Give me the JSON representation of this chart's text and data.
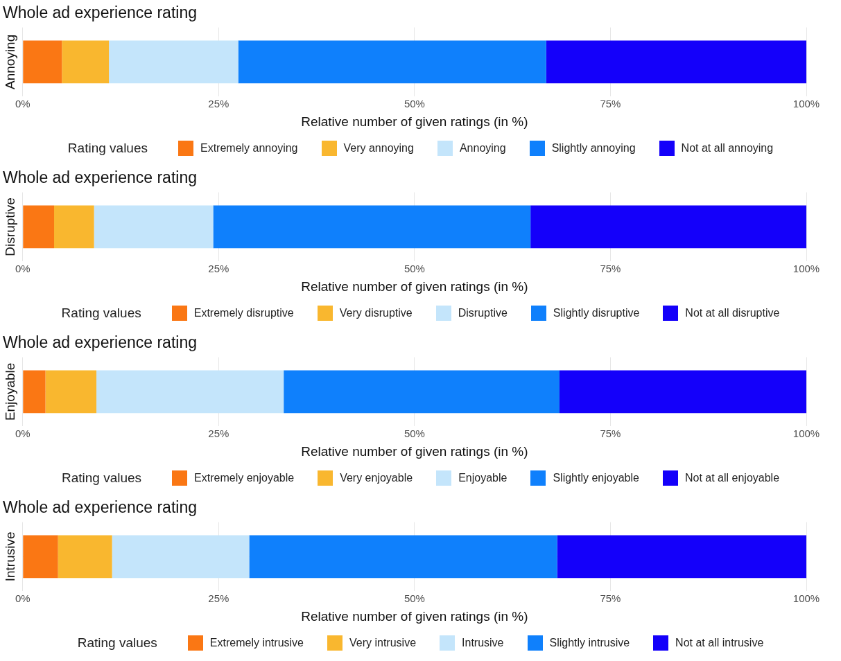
{
  "chart_data": [
    {
      "type": "bar",
      "title": "Whole ad experience rating",
      "ylabel": "Annoying",
      "xlabel": "Relative number of given ratings (in %)",
      "legend_title": "Rating values",
      "categories": [
        null
      ],
      "orientation": "horizontal",
      "stacked": true,
      "legend": "bottom",
      "grid": true,
      "xlim": [
        0,
        100
      ],
      "xticks": [
        {
          "value": 0,
          "label": "0%"
        },
        {
          "value": 25,
          "label": "25%"
        },
        {
          "value": 50,
          "label": "50%"
        },
        {
          "value": 75,
          "label": "75%"
        },
        {
          "value": 100,
          "label": "100%"
        }
      ],
      "series": [
        {
          "name": "Extremely annoying",
          "color": "#fa7714",
          "values": [
            5.0
          ]
        },
        {
          "name": "Very annoying",
          "color": "#f9b72f",
          "values": [
            6.0
          ]
        },
        {
          "name": "Annoying",
          "color": "#c4e5fb",
          "values": [
            16.5
          ]
        },
        {
          "name": "Slightly annoying",
          "color": "#0f80fc",
          "values": [
            39.3
          ]
        },
        {
          "name": "Not at all annoying",
          "color": "#1400fa",
          "values": [
            33.2
          ]
        }
      ]
    },
    {
      "type": "bar",
      "title": "Whole ad experience rating",
      "ylabel": "Disruptive",
      "xlabel": "Relative number of given ratings (in %)",
      "legend_title": "Rating values",
      "categories": [
        null
      ],
      "orientation": "horizontal",
      "stacked": true,
      "legend": "bottom",
      "grid": true,
      "xlim": [
        0,
        100
      ],
      "xticks": [
        {
          "value": 0,
          "label": "0%"
        },
        {
          "value": 25,
          "label": "25%"
        },
        {
          "value": 50,
          "label": "50%"
        },
        {
          "value": 75,
          "label": "75%"
        },
        {
          "value": 100,
          "label": "100%"
        }
      ],
      "series": [
        {
          "name": "Extremely disruptive",
          "color": "#fa7714",
          "values": [
            4.0
          ]
        },
        {
          "name": "Very disruptive",
          "color": "#f9b72f",
          "values": [
            5.1
          ]
        },
        {
          "name": "Disruptive",
          "color": "#c4e5fb",
          "values": [
            15.2
          ]
        },
        {
          "name": "Slightly disruptive",
          "color": "#0f80fc",
          "values": [
            40.5
          ]
        },
        {
          "name": "Not at all disruptive",
          "color": "#1400fa",
          "values": [
            35.2
          ]
        }
      ]
    },
    {
      "type": "bar",
      "title": "Whole ad experience rating",
      "ylabel": "Enjoyable",
      "xlabel": "Relative number of given ratings (in %)",
      "legend_title": "Rating values",
      "categories": [
        null
      ],
      "orientation": "horizontal",
      "stacked": true,
      "legend": "bottom",
      "grid": true,
      "xlim": [
        0,
        100
      ],
      "xticks": [
        {
          "value": 0,
          "label": "0%"
        },
        {
          "value": 25,
          "label": "25%"
        },
        {
          "value": 50,
          "label": "50%"
        },
        {
          "value": 75,
          "label": "75%"
        },
        {
          "value": 100,
          "label": "100%"
        }
      ],
      "series": [
        {
          "name": "Extremely enjoyable",
          "color": "#fa7714",
          "values": [
            2.9
          ]
        },
        {
          "name": "Very enjoyable",
          "color": "#f9b72f",
          "values": [
            6.5
          ]
        },
        {
          "name": "Enjoyable",
          "color": "#c4e5fb",
          "values": [
            23.9
          ]
        },
        {
          "name": "Slightly enjoyable",
          "color": "#0f80fc",
          "values": [
            35.2
          ]
        },
        {
          "name": "Not at all enjoyable",
          "color": "#1400fa",
          "values": [
            31.5
          ]
        }
      ]
    },
    {
      "type": "bar",
      "title": "Whole ad experience rating",
      "ylabel": "Intrusive",
      "xlabel": "Relative number of given ratings (in %)",
      "legend_title": "Rating values",
      "categories": [
        null
      ],
      "orientation": "horizontal",
      "stacked": true,
      "legend": "bottom",
      "grid": true,
      "xlim": [
        0,
        100
      ],
      "xticks": [
        {
          "value": 0,
          "label": "0%"
        },
        {
          "value": 25,
          "label": "25%"
        },
        {
          "value": 50,
          "label": "50%"
        },
        {
          "value": 75,
          "label": "75%"
        },
        {
          "value": 100,
          "label": "100%"
        }
      ],
      "series": [
        {
          "name": "Extremely intrusive",
          "color": "#fa7714",
          "values": [
            4.5
          ]
        },
        {
          "name": "Very intrusive",
          "color": "#f9b72f",
          "values": [
            6.9
          ]
        },
        {
          "name": "Intrusive",
          "color": "#c4e5fb",
          "values": [
            17.5
          ]
        },
        {
          "name": "Slightly intrusive",
          "color": "#0f80fc",
          "values": [
            39.3
          ]
        },
        {
          "name": "Not at all intrusive",
          "color": "#1400fa",
          "values": [
            31.8
          ]
        }
      ]
    }
  ]
}
